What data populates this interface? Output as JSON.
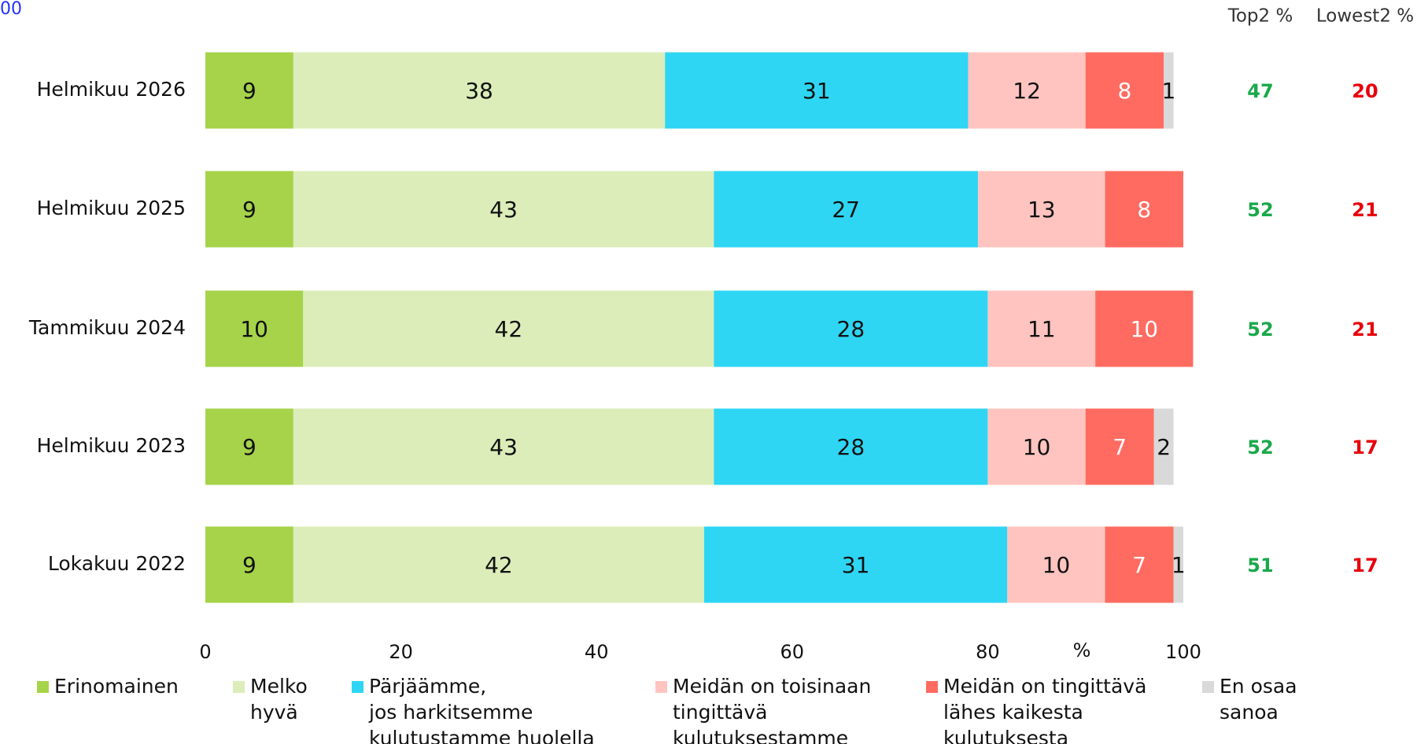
{
  "chart_data": {
    "type": "stacked_barh",
    "annotation": "00",
    "categories": [
      "Helmikuu 2026",
      "Helmikuu 2025",
      "Tammikuu 2024",
      "Helmikuu 2023",
      "Lokakuu 2022"
    ],
    "series": [
      {
        "name": "Erinomainen",
        "color": "#a6d34a",
        "label_color": "#111111",
        "values": [
          9,
          9,
          10,
          9,
          9
        ]
      },
      {
        "name": "Melko\nhyvä",
        "color": "#dcedb9",
        "label_color": "#111111",
        "values": [
          38,
          43,
          42,
          43,
          42
        ]
      },
      {
        "name": "Pärjäämme,\njos harkitsemme\nkulutustamme huolella",
        "color": "#2ed6f4",
        "label_color": "#111111",
        "values": [
          31,
          27,
          28,
          28,
          31
        ]
      },
      {
        "name": "Meidän on toisinaan\ntingittävä\nkulutuksestamme",
        "color": "#ffc4bf",
        "label_color": "#111111",
        "values": [
          12,
          13,
          11,
          10,
          10
        ]
      },
      {
        "name": "Meidän on tingittävä\nlähes kaikesta\nkulutuksesta",
        "color": "#ff6b61",
        "label_color": "#ffffff",
        "values": [
          8,
          8,
          10,
          7,
          7
        ]
      },
      {
        "name": "En osaa\nsanoa",
        "color": "#d9d9d9",
        "label_color": "#111111",
        "values": [
          1,
          null,
          null,
          2,
          1
        ]
      }
    ],
    "xlim": [
      0,
      100
    ],
    "xticks": [
      0,
      20,
      40,
      60,
      80,
      100
    ],
    "xlabel": "%",
    "top2": {
      "label": "Top2 %",
      "color": "#1aa84b",
      "values": [
        47,
        52,
        52,
        52,
        51
      ]
    },
    "lowest2": {
      "label": "Lowest2 %",
      "color": "#e8000b",
      "values": [
        20,
        21,
        21,
        17,
        17
      ]
    }
  }
}
